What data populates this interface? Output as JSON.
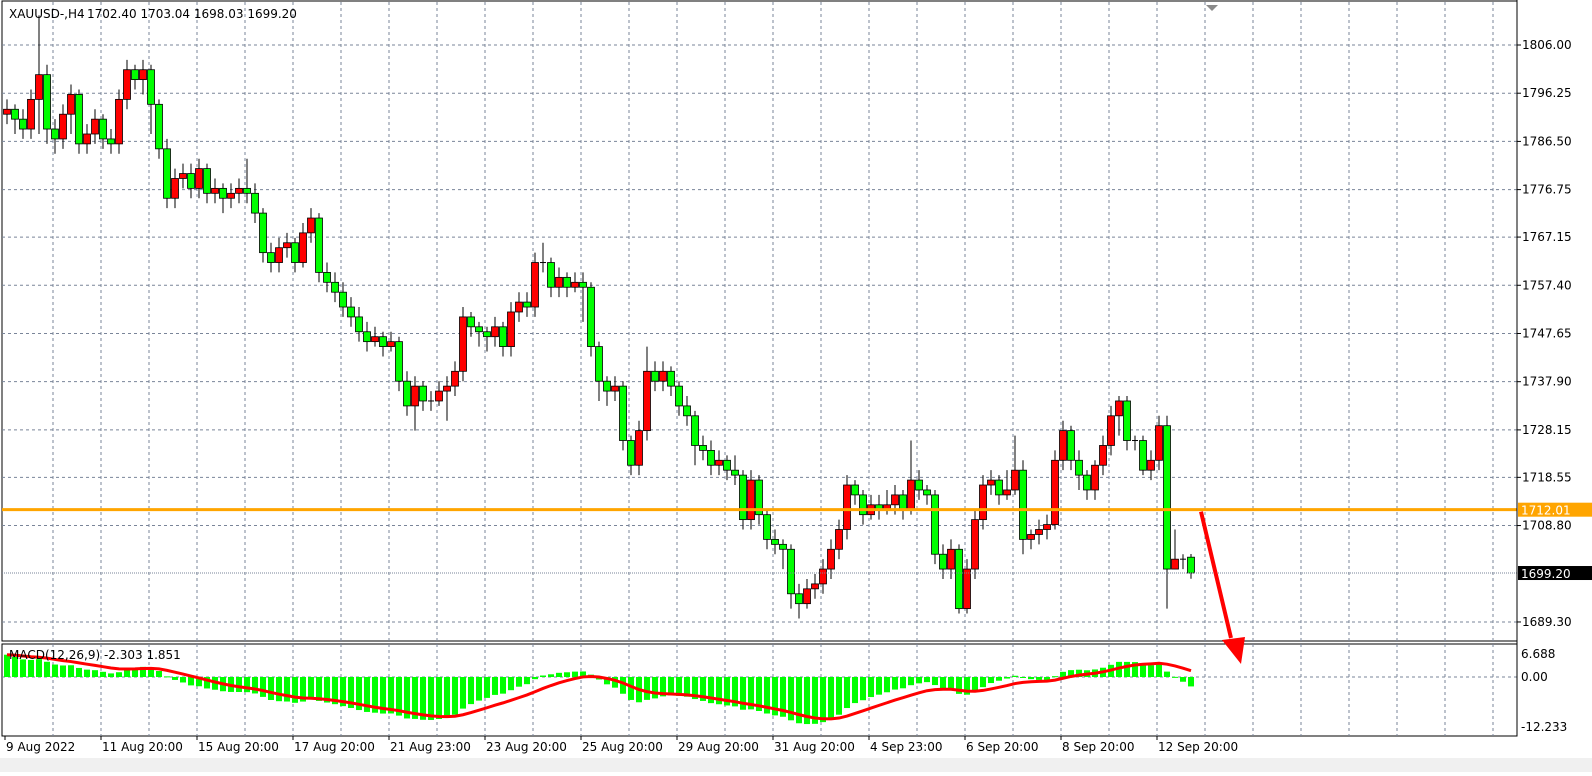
{
  "header": {
    "symbol": "XAUUSD-,H4",
    "ohlc_text": "1702.40 1703.04 1698.03 1699.20"
  },
  "colors": {
    "bull": "#ff0000",
    "bear": "#00ff00",
    "level": "#ffa500",
    "arrow": "#ff0000",
    "grid": "#7a8599",
    "signal": "#ff0000",
    "histogram": "#00ff00"
  },
  "chart_data": {
    "type": "candlestick",
    "symbol": "XAUUSD-",
    "timeframe": "H4",
    "ylim": [
      1684,
      1818
    ],
    "y_ticks": [
      "1806.00",
      "1796.25",
      "1786.50",
      "1776.75",
      "1767.15",
      "1757.40",
      "1747.65",
      "1737.90",
      "1728.15",
      "1718.55",
      "1708.80",
      "1689.30"
    ],
    "x_ticks": [
      {
        "label": "9 Aug 2022",
        "bar": 0
      },
      {
        "label": "11 Aug 20:00",
        "bar": 12
      },
      {
        "label": "15 Aug 20:00",
        "bar": 24
      },
      {
        "label": "17 Aug 20:00",
        "bar": 36
      },
      {
        "label": "21 Aug 23:00",
        "bar": 48
      },
      {
        "label": "23 Aug 20:00",
        "bar": 60
      },
      {
        "label": "25 Aug 20:00",
        "bar": 72
      },
      {
        "label": "29 Aug 20:00",
        "bar": 84
      },
      {
        "label": "31 Aug 20:00",
        "bar": 96
      },
      {
        "label": "4 Sep 23:00",
        "bar": 108
      },
      {
        "label": "6 Sep 20:00",
        "bar": 120
      },
      {
        "label": "8 Sep 20:00",
        "bar": 132
      },
      {
        "label": "12 Sep 20:00",
        "bar": 144
      }
    ],
    "grid": true,
    "horizontal_level": {
      "value": 1712.01,
      "label": "1712.01"
    },
    "current_price": {
      "value": 1699.2,
      "label": "1699.20"
    },
    "annotation": "red downward arrow from level 1712.01",
    "ohlc": [
      [
        1792,
        1795,
        1790,
        1793
      ],
      [
        1793,
        1794,
        1788,
        1791
      ],
      [
        1791,
        1793,
        1787,
        1789
      ],
      [
        1789,
        1797,
        1787,
        1795
      ],
      [
        1795,
        1812,
        1788,
        1800
      ],
      [
        1800,
        1802,
        1786,
        1789
      ],
      [
        1789,
        1791,
        1784,
        1787
      ],
      [
        1787,
        1794,
        1785,
        1792
      ],
      [
        1792,
        1798,
        1788,
        1796
      ],
      [
        1796,
        1797,
        1784,
        1786
      ],
      [
        1786,
        1790,
        1784,
        1788
      ],
      [
        1788,
        1793,
        1786,
        1791
      ],
      [
        1791,
        1792,
        1785,
        1787
      ],
      [
        1787,
        1789,
        1784,
        1786
      ],
      [
        1786,
        1797,
        1784,
        1795
      ],
      [
        1795,
        1803,
        1793,
        1801
      ],
      [
        1801,
        1802,
        1797,
        1799
      ],
      [
        1799,
        1803,
        1796,
        1801
      ],
      [
        1801,
        1802,
        1788,
        1794
      ],
      [
        1794,
        1795,
        1783,
        1785
      ],
      [
        1785,
        1787,
        1773,
        1775
      ],
      [
        1775,
        1781,
        1773,
        1779
      ],
      [
        1779,
        1782,
        1777,
        1780
      ],
      [
        1780,
        1782,
        1775,
        1777
      ],
      [
        1777,
        1783,
        1775,
        1781
      ],
      [
        1781,
        1782,
        1774,
        1776
      ],
      [
        1776,
        1779,
        1774,
        1777
      ],
      [
        1777,
        1778,
        1772,
        1775
      ],
      [
        1775,
        1778,
        1773,
        1776
      ],
      [
        1776,
        1779,
        1774,
        1777
      ],
      [
        1777,
        1783,
        1774,
        1776
      ],
      [
        1776,
        1778,
        1770,
        1772
      ],
      [
        1772,
        1773,
        1762,
        1764
      ],
      [
        1764,
        1766,
        1760,
        1762
      ],
      [
        1762,
        1767,
        1760,
        1765
      ],
      [
        1765,
        1768,
        1763,
        1766
      ],
      [
        1766,
        1767,
        1760,
        1762
      ],
      [
        1762,
        1770,
        1761,
        1768
      ],
      [
        1768,
        1773,
        1766,
        1771
      ],
      [
        1771,
        1772,
        1758,
        1760
      ],
      [
        1760,
        1762,
        1756,
        1758
      ],
      [
        1758,
        1760,
        1754,
        1756
      ],
      [
        1756,
        1758,
        1751,
        1753
      ],
      [
        1753,
        1755,
        1749,
        1751
      ],
      [
        1751,
        1753,
        1746,
        1748
      ],
      [
        1748,
        1750,
        1744,
        1746
      ],
      [
        1746,
        1749,
        1745,
        1747
      ],
      [
        1747,
        1748,
        1743,
        1745
      ],
      [
        1745,
        1748,
        1744,
        1746
      ],
      [
        1746,
        1747,
        1736,
        1738
      ],
      [
        1738,
        1740,
        1731,
        1733
      ],
      [
        1733,
        1739,
        1728,
        1737
      ],
      [
        1737,
        1738,
        1732,
        1734
      ],
      [
        1734,
        1736,
        1732,
        1734
      ],
      [
        1734,
        1738,
        1733,
        1736
      ],
      [
        1736,
        1739,
        1730,
        1737
      ],
      [
        1737,
        1742,
        1735,
        1740
      ],
      [
        1740,
        1753,
        1738,
        1751
      ],
      [
        1751,
        1752,
        1747,
        1749
      ],
      [
        1749,
        1750,
        1745,
        1748
      ],
      [
        1748,
        1749,
        1744,
        1747
      ],
      [
        1747,
        1751,
        1745,
        1749
      ],
      [
        1749,
        1750,
        1743,
        1745
      ],
      [
        1745,
        1754,
        1743,
        1752
      ],
      [
        1752,
        1756,
        1750,
        1754
      ],
      [
        1754,
        1756,
        1751,
        1753
      ],
      [
        1753,
        1764,
        1751,
        1762
      ],
      [
        1762,
        1766,
        1760,
        1762
      ],
      [
        1762,
        1763,
        1755,
        1757
      ],
      [
        1757,
        1761,
        1755,
        1759
      ],
      [
        1759,
        1760,
        1755,
        1757
      ],
      [
        1757,
        1760,
        1756,
        1758
      ],
      [
        1758,
        1760,
        1750,
        1757
      ],
      [
        1757,
        1758,
        1743,
        1745
      ],
      [
        1745,
        1746,
        1734,
        1738
      ],
      [
        1738,
        1739,
        1733,
        1736
      ],
      [
        1736,
        1739,
        1734,
        1737
      ],
      [
        1737,
        1738,
        1724,
        1726
      ],
      [
        1726,
        1727,
        1719,
        1721
      ],
      [
        1721,
        1730,
        1719,
        1728
      ],
      [
        1728,
        1745,
        1726,
        1740
      ],
      [
        1740,
        1742,
        1736,
        1738
      ],
      [
        1738,
        1742,
        1736,
        1740
      ],
      [
        1740,
        1741,
        1735,
        1737
      ],
      [
        1737,
        1738,
        1731,
        1733
      ],
      [
        1733,
        1735,
        1729,
        1731
      ],
      [
        1731,
        1732,
        1721,
        1725
      ],
      [
        1725,
        1727,
        1722,
        1724
      ],
      [
        1724,
        1726,
        1719,
        1721
      ],
      [
        1721,
        1724,
        1719,
        1722
      ],
      [
        1722,
        1723,
        1718,
        1720
      ],
      [
        1720,
        1723,
        1717,
        1719
      ],
      [
        1719,
        1720,
        1708,
        1710
      ],
      [
        1710,
        1720,
        1708,
        1718
      ],
      [
        1718,
        1719,
        1709,
        1711
      ],
      [
        1711,
        1712,
        1704,
        1706
      ],
      [
        1706,
        1708,
        1703,
        1705
      ],
      [
        1705,
        1706,
        1700,
        1704
      ],
      [
        1704,
        1705,
        1692,
        1695
      ],
      [
        1695,
        1697,
        1690,
        1693
      ],
      [
        1693,
        1698,
        1692,
        1696
      ],
      [
        1696,
        1699,
        1694,
        1697
      ],
      [
        1697,
        1702,
        1695,
        1700
      ],
      [
        1700,
        1706,
        1698,
        1704
      ],
      [
        1704,
        1710,
        1702,
        1708
      ],
      [
        1708,
        1719,
        1706,
        1717
      ],
      [
        1717,
        1718,
        1713,
        1715
      ],
      [
        1715,
        1716,
        1709,
        1711
      ],
      [
        1711,
        1715,
        1710,
        1713
      ],
      [
        1713,
        1715,
        1710,
        1712
      ],
      [
        1712,
        1716,
        1711,
        1713
      ],
      [
        1713,
        1717,
        1711,
        1715
      ],
      [
        1715,
        1716,
        1710,
        1712
      ],
      [
        1712,
        1726,
        1711,
        1718
      ],
      [
        1718,
        1720,
        1714,
        1716
      ],
      [
        1716,
        1717,
        1713,
        1715
      ],
      [
        1715,
        1716,
        1701,
        1703
      ],
      [
        1703,
        1705,
        1698,
        1700
      ],
      [
        1700,
        1706,
        1698,
        1704
      ],
      [
        1704,
        1705,
        1691,
        1692
      ],
      [
        1692,
        1702,
        1691,
        1700
      ],
      [
        1700,
        1712,
        1698,
        1710
      ],
      [
        1710,
        1719,
        1708,
        1717
      ],
      [
        1717,
        1720,
        1715,
        1718
      ],
      [
        1718,
        1719,
        1713,
        1715
      ],
      [
        1715,
        1720,
        1714,
        1716
      ],
      [
        1716,
        1727,
        1715,
        1720
      ],
      [
        1720,
        1722,
        1703,
        1706
      ],
      [
        1706,
        1708,
        1704,
        1707
      ],
      [
        1707,
        1710,
        1705,
        1708
      ],
      [
        1708,
        1711,
        1706,
        1709
      ],
      [
        1709,
        1724,
        1708,
        1722
      ],
      [
        1722,
        1730,
        1720,
        1728
      ],
      [
        1728,
        1729,
        1720,
        1722
      ],
      [
        1722,
        1724,
        1716,
        1719
      ],
      [
        1719,
        1720,
        1714,
        1716
      ],
      [
        1716,
        1722,
        1714,
        1721
      ],
      [
        1721,
        1727,
        1719,
        1725
      ],
      [
        1725,
        1733,
        1723,
        1731
      ],
      [
        1731,
        1735,
        1727,
        1734
      ],
      [
        1734,
        1735,
        1724,
        1726
      ],
      [
        1726,
        1727,
        1724,
        1726
      ],
      [
        1726,
        1727,
        1719,
        1720
      ],
      [
        1720,
        1724,
        1718,
        1722
      ],
      [
        1722,
        1731,
        1720,
        1729
      ],
      [
        1729,
        1731,
        1692,
        1700
      ],
      [
        1700,
        1708,
        1700,
        1702
      ],
      [
        1702,
        1703,
        1700,
        1702
      ],
      [
        1702.4,
        1703.04,
        1698.03,
        1699.2
      ]
    ],
    "indicator": {
      "label": "MACD(12,26,9) -2.303 1.851",
      "params": [
        12,
        26,
        9
      ],
      "main": -2.303,
      "signal": 1.851,
      "y_ticks": [
        "6.688",
        "0.00",
        "-12.233"
      ]
    }
  }
}
